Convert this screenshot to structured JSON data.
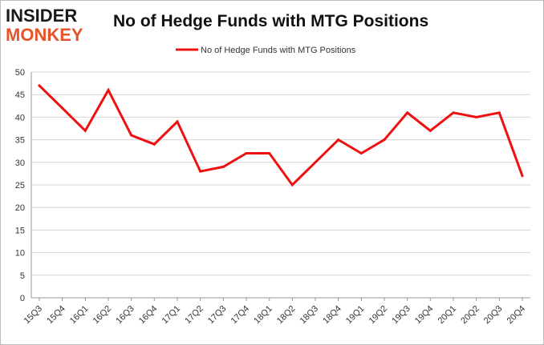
{
  "logo": {
    "line1": "INSIDER",
    "line2": "MONKEY"
  },
  "colors": {
    "line": "#ee1111",
    "grid": "#d4d4d4",
    "axis": "#9a9a9a",
    "logo_accent": "#e8542a"
  },
  "chart_data": {
    "type": "line",
    "title": "No of Hedge Funds with MTG Positions",
    "xlabel": "",
    "ylabel": "",
    "ylim": [
      0,
      50
    ],
    "yticks": [
      0,
      5,
      10,
      15,
      20,
      25,
      30,
      35,
      40,
      45,
      50
    ],
    "grid": "horizontal",
    "legend": "top-center",
    "categories": [
      "15Q3",
      "15Q4",
      "16Q1",
      "16Q2",
      "16Q3",
      "16Q4",
      "17Q1",
      "17Q2",
      "17Q3",
      "17Q4",
      "18Q1",
      "18Q2",
      "18Q3",
      "18Q4",
      "19Q1",
      "19Q2",
      "19Q3",
      "19Q4",
      "20Q1",
      "20Q2",
      "20Q3",
      "20Q4"
    ],
    "series": [
      {
        "name": "No of Hedge Funds with MTG Positions",
        "values": [
          47,
          42,
          37,
          46,
          36,
          34,
          39,
          28,
          29,
          32,
          32,
          25,
          30,
          35,
          32,
          35,
          41,
          37,
          41,
          40,
          41,
          27
        ]
      }
    ]
  }
}
